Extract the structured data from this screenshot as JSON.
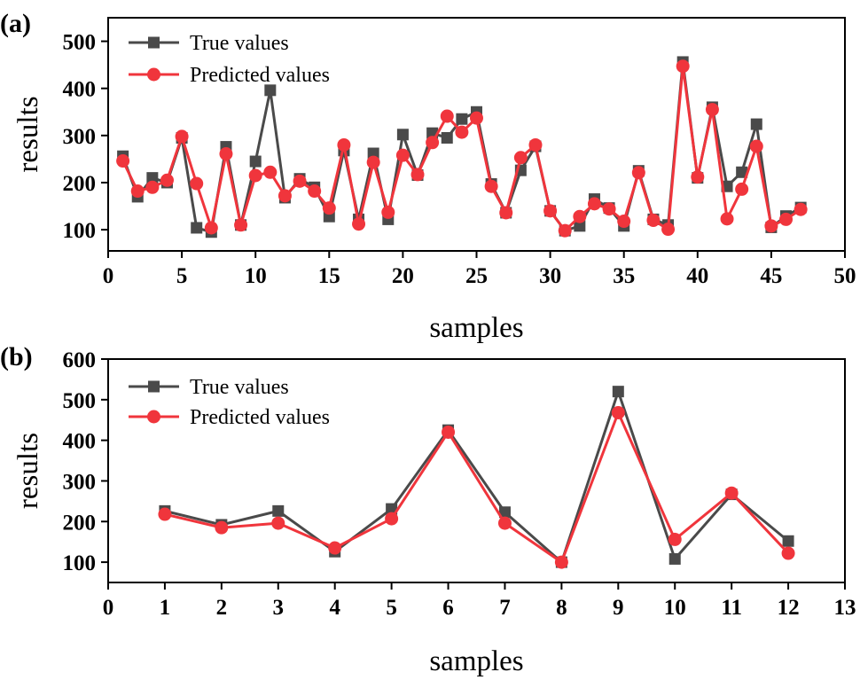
{
  "chart_data": [
    {
      "type": "line",
      "panel_label": "(a)",
      "xlabel": "samples",
      "ylabel": "results",
      "xlim": [
        0,
        50
      ],
      "ylim": [
        55,
        550
      ],
      "xticks": [
        0,
        5,
        10,
        15,
        20,
        25,
        30,
        35,
        40,
        45,
        50
      ],
      "yticks": [
        100,
        200,
        300,
        400,
        500
      ],
      "legend_position": "top-left",
      "x": [
        1,
        2,
        3,
        4,
        5,
        6,
        7,
        8,
        9,
        10,
        11,
        12,
        13,
        14,
        15,
        16,
        17,
        18,
        19,
        20,
        21,
        22,
        23,
        24,
        25,
        26,
        27,
        28,
        29,
        30,
        31,
        32,
        33,
        34,
        35,
        36,
        37,
        38,
        39,
        40,
        41,
        42,
        43,
        44,
        45,
        46,
        47
      ],
      "series": [
        {
          "name": "True values",
          "color": "#4a4a4a",
          "marker": "square",
          "values": [
            256,
            170,
            210,
            200,
            295,
            104,
            95,
            276,
            110,
            245,
            396,
            168,
            208,
            190,
            128,
            268,
            122,
            262,
            122,
            302,
            216,
            305,
            295,
            335,
            350,
            197,
            136,
            226,
            277,
            140,
            98,
            108,
            165,
            146,
            108,
            225,
            122,
            110,
            456,
            210,
            360,
            192,
            222,
            324,
            105,
            129,
            147
          ]
        },
        {
          "name": "Predicted values",
          "color": "#f0353c",
          "marker": "circle",
          "values": [
            246,
            182,
            190,
            205,
            298,
            198,
            104,
            261,
            110,
            215,
            222,
            172,
            203,
            182,
            146,
            280,
            112,
            243,
            137,
            258,
            217,
            285,
            341,
            307,
            337,
            192,
            136,
            253,
            280,
            140,
            98,
            128,
            155,
            144,
            118,
            221,
            120,
            101,
            447,
            212,
            355,
            123,
            186,
            277,
            108,
            122,
            143
          ]
        }
      ]
    },
    {
      "type": "line",
      "panel_label": "(b)",
      "xlabel": "samples",
      "ylabel": "results",
      "xlim": [
        0,
        13
      ],
      "ylim": [
        50,
        600
      ],
      "xticks": [
        0,
        1,
        2,
        3,
        4,
        5,
        6,
        7,
        8,
        9,
        10,
        11,
        12,
        13
      ],
      "yticks": [
        100,
        200,
        300,
        400,
        500,
        600
      ],
      "legend_position": "top-left",
      "x": [
        1,
        2,
        3,
        4,
        5,
        6,
        7,
        8,
        9,
        10,
        11,
        12
      ],
      "series": [
        {
          "name": "True values",
          "color": "#4a4a4a",
          "marker": "square",
          "values": [
            226,
            192,
            226,
            126,
            231,
            425,
            223,
            100,
            520,
            108,
            267,
            152
          ]
        },
        {
          "name": "Predicted values",
          "color": "#f0353c",
          "marker": "circle",
          "values": [
            218,
            185,
            196,
            135,
            207,
            420,
            196,
            100,
            468,
            156,
            270,
            122
          ]
        }
      ]
    }
  ]
}
